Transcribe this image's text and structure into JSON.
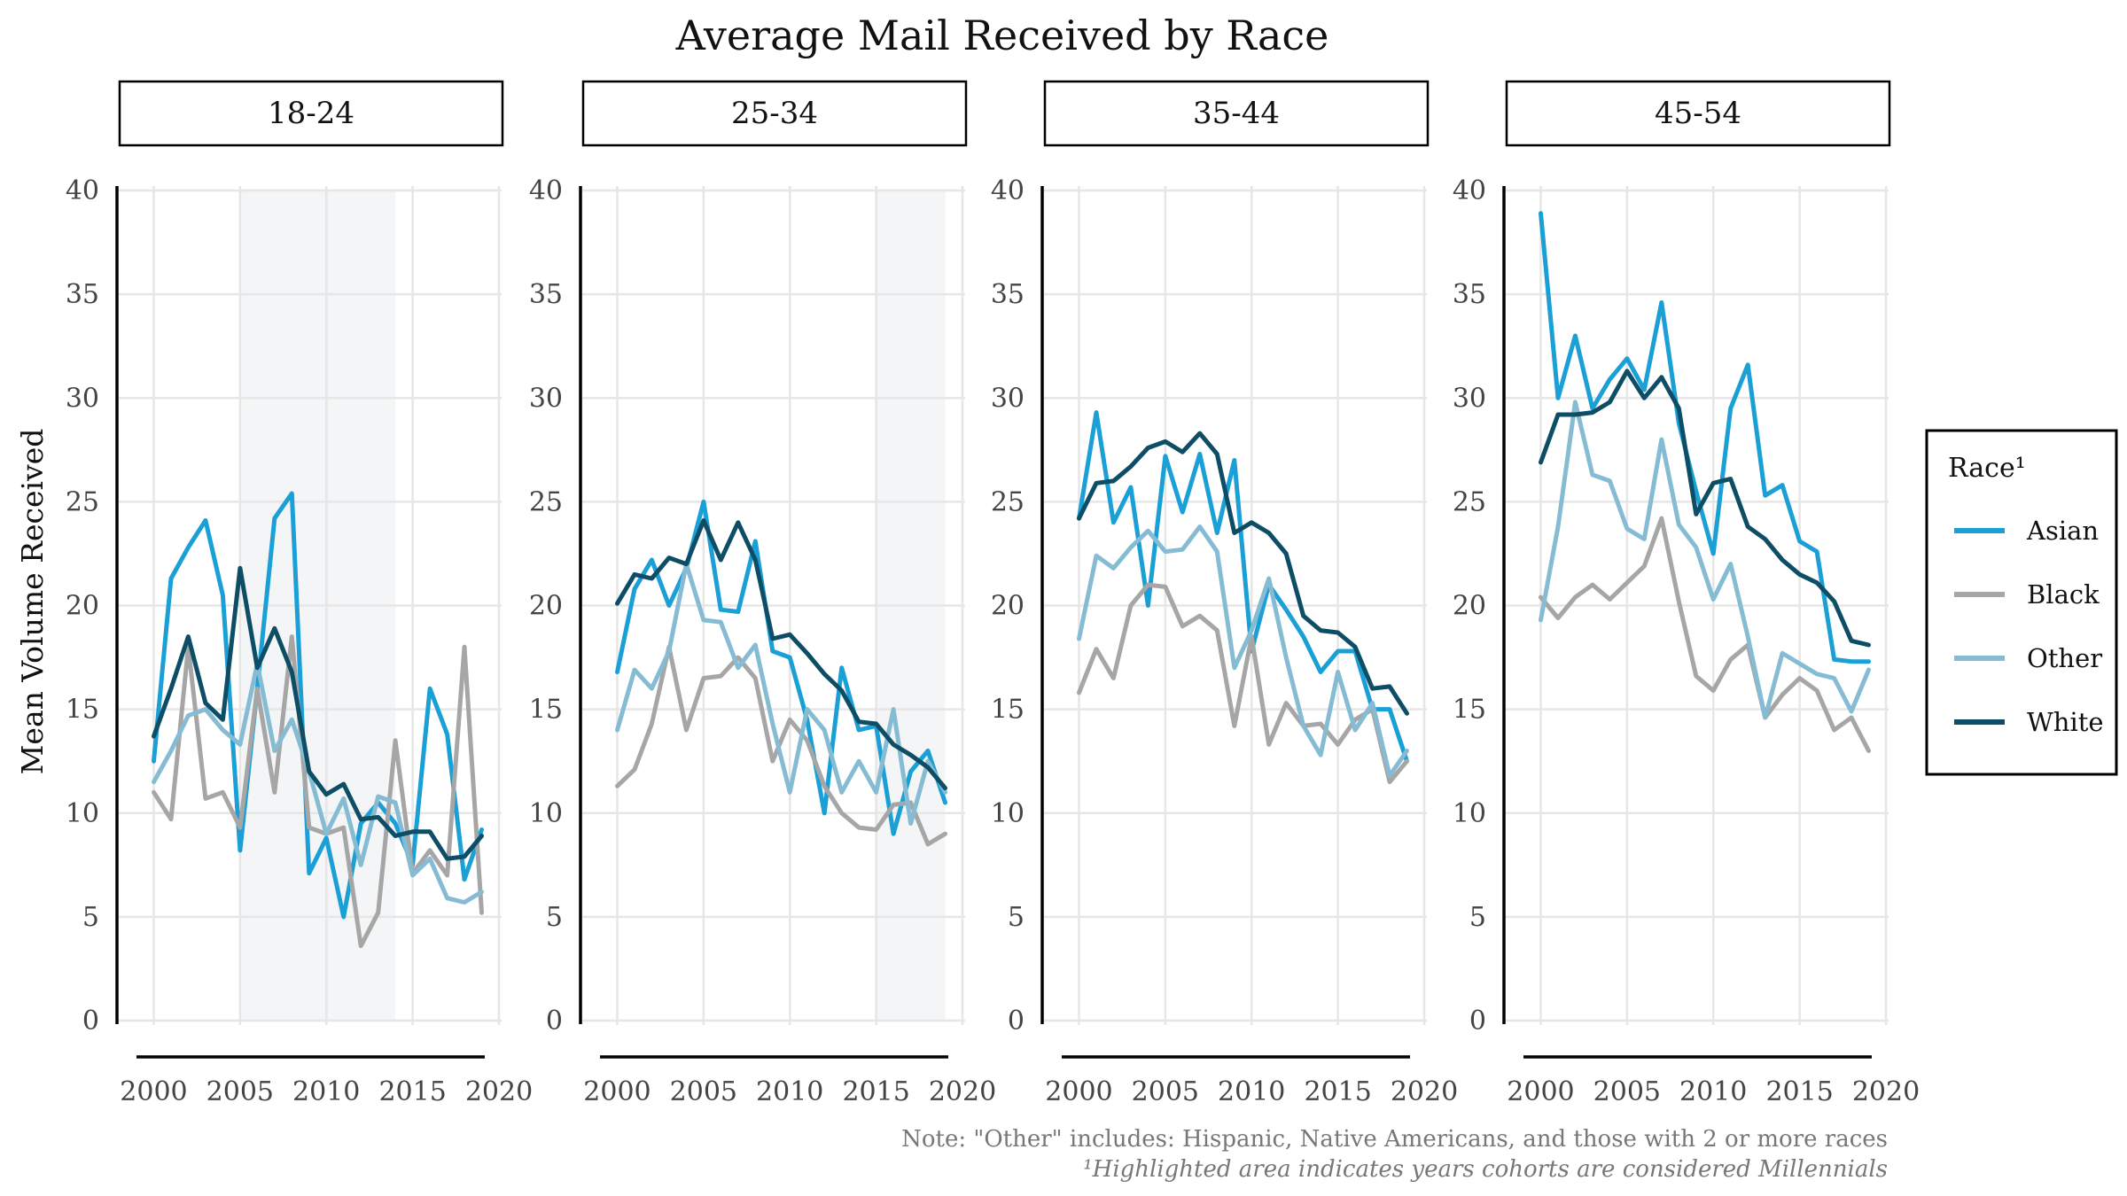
{
  "chart_data": {
    "type": "line",
    "title": "Average Mail Received by Race",
    "ylabel": "Mean Volume Received",
    "xlabel": "",
    "ylim": [
      0,
      40
    ],
    "xlim": [
      1999,
      2020
    ],
    "y_ticks": [
      "0",
      "5",
      "10",
      "15",
      "20",
      "25",
      "30",
      "35",
      "40"
    ],
    "x_ticks": [
      "2000",
      "2005",
      "2010",
      "2015",
      "2020"
    ],
    "x_tick_values": [
      2000,
      2005,
      2010,
      2015,
      2020
    ],
    "y_tick_values": [
      0,
      5,
      10,
      15,
      20,
      25,
      30,
      35,
      40
    ],
    "grid": true,
    "legend": {
      "title": "Race¹",
      "position": "right",
      "entries": [
        "Asian",
        "Black",
        "Other",
        "White"
      ]
    },
    "colors": {
      "Asian": "#1a9fd6",
      "Black": "#a6a6a6",
      "Other": "#86bcd3",
      "White": "#0e4d66",
      "highlight": "#f4f5f6",
      "grid": "#e6e6e6"
    },
    "notes": [
      "Note: \"Other\" includes: Hispanic, Native Americans, and those with 2 or more races",
      "¹Highlighted area indicates years cohorts are considered Millennials"
    ],
    "x": [
      2000,
      2001,
      2002,
      2003,
      2004,
      2005,
      2006,
      2007,
      2008,
      2009,
      2010,
      2011,
      2012,
      2013,
      2014,
      2015,
      2016,
      2017,
      2018,
      2019
    ],
    "panels": [
      {
        "label": "18-24",
        "highlight": [
          2005,
          2014
        ],
        "series": [
          {
            "name": "Asian",
            "values": [
              12.5,
              21.3,
              22.8,
              24.1,
              20.5,
              8.2,
              16.0,
              24.2,
              25.4,
              7.1,
              8.8,
              5.0,
              9.5,
              10.5,
              9.5,
              7.5,
              16.0,
              13.8,
              6.8,
              9.2
            ]
          },
          {
            "name": "Black",
            "values": [
              11.0,
              9.7,
              18.0,
              10.7,
              11.0,
              9.3,
              16.0,
              11.0,
              18.5,
              9.3,
              9.0,
              9.3,
              3.6,
              5.2,
              13.5,
              7.1,
              8.2,
              7.0,
              18.0,
              5.2
            ]
          },
          {
            "name": "Other",
            "values": [
              11.5,
              13.0,
              14.7,
              15.0,
              14.0,
              13.3,
              17.2,
              13.0,
              14.5,
              12.0,
              9.0,
              10.7,
              7.5,
              10.8,
              10.5,
              7.0,
              7.8,
              5.9,
              5.7,
              6.2
            ]
          },
          {
            "name": "White",
            "values": [
              13.7,
              16.0,
              18.5,
              15.3,
              14.5,
              21.8,
              17.0,
              18.9,
              16.8,
              12.0,
              10.9,
              11.4,
              9.7,
              9.8,
              8.9,
              9.1,
              9.1,
              7.8,
              7.9,
              8.9
            ]
          }
        ]
      },
      {
        "label": "25-34",
        "highlight": [
          2015,
          2019
        ],
        "series": [
          {
            "name": "Asian",
            "values": [
              16.8,
              20.8,
              22.2,
              20.0,
              21.8,
              25.0,
              19.8,
              19.7,
              23.1,
              17.8,
              17.5,
              14.5,
              10.0,
              17.0,
              14.0,
              14.2,
              9.0,
              12.0,
              13.0,
              10.5
            ]
          },
          {
            "name": "Black",
            "values": [
              11.3,
              12.1,
              14.3,
              18.0,
              14.0,
              16.5,
              16.6,
              17.5,
              16.5,
              12.5,
              14.5,
              13.5,
              11.3,
              10.0,
              9.3,
              9.2,
              10.4,
              10.5,
              8.5,
              9.0
            ]
          },
          {
            "name": "Other",
            "values": [
              14.0,
              16.9,
              16.0,
              17.8,
              22.0,
              19.3,
              19.2,
              17.0,
              18.1,
              14.3,
              11.0,
              15.0,
              14.0,
              11.0,
              12.5,
              11.0,
              15.0,
              9.5,
              12.5,
              11.0
            ]
          },
          {
            "name": "White",
            "values": [
              20.1,
              21.5,
              21.3,
              22.3,
              22.0,
              24.1,
              22.2,
              24.0,
              22.2,
              18.4,
              18.6,
              17.7,
              16.7,
              15.9,
              14.4,
              14.3,
              13.3,
              12.8,
              12.2,
              11.2
            ]
          }
        ]
      },
      {
        "label": "35-44",
        "highlight": null,
        "series": [
          {
            "name": "Asian",
            "values": [
              24.2,
              29.3,
              24.0,
              25.7,
              20.0,
              27.2,
              24.5,
              27.3,
              23.5,
              27.0,
              17.8,
              21.0,
              19.8,
              18.5,
              16.8,
              17.8,
              17.8,
              15.0,
              15.0,
              12.5
            ]
          },
          {
            "name": "Black",
            "values": [
              15.8,
              17.9,
              16.5,
              20.0,
              21.0,
              20.9,
              19.0,
              19.5,
              18.8,
              14.2,
              18.5,
              13.3,
              15.3,
              14.2,
              14.3,
              13.3,
              14.5,
              15.0,
              11.5,
              12.5
            ]
          },
          {
            "name": "Other",
            "values": [
              18.4,
              22.4,
              21.8,
              22.8,
              23.6,
              22.6,
              22.7,
              23.8,
              22.6,
              17.0,
              18.8,
              21.3,
              17.5,
              14.2,
              12.8,
              16.8,
              14.0,
              15.3,
              11.8,
              13.0
            ]
          },
          {
            "name": "White",
            "values": [
              24.2,
              25.9,
              26.0,
              26.7,
              27.6,
              27.9,
              27.4,
              28.3,
              27.3,
              23.5,
              24.0,
              23.5,
              22.5,
              19.5,
              18.8,
              18.7,
              18.0,
              16.0,
              16.1,
              14.8
            ]
          }
        ]
      },
      {
        "label": "45-54",
        "highlight": null,
        "series": [
          {
            "name": "Asian",
            "values": [
              38.9,
              30.0,
              33.0,
              29.5,
              30.9,
              31.9,
              30.4,
              34.6,
              28.8,
              25.5,
              22.5,
              29.5,
              31.6,
              25.3,
              25.8,
              23.1,
              22.6,
              17.4,
              17.3,
              17.3
            ]
          },
          {
            "name": "Black",
            "values": [
              20.4,
              19.4,
              20.4,
              21.0,
              20.3,
              21.1,
              21.9,
              24.2,
              20.2,
              16.6,
              15.9,
              17.4,
              18.1,
              14.6,
              15.7,
              16.5,
              15.9,
              14.0,
              14.6,
              13.0
            ]
          },
          {
            "name": "Other",
            "values": [
              19.3,
              23.8,
              29.8,
              26.3,
              26.0,
              23.7,
              23.2,
              28.0,
              23.9,
              22.8,
              20.3,
              22.0,
              18.5,
              14.6,
              17.7,
              17.2,
              16.7,
              16.5,
              14.9,
              16.9
            ]
          },
          {
            "name": "White",
            "values": [
              26.9,
              29.2,
              29.2,
              29.3,
              29.8,
              31.3,
              30.0,
              31.0,
              29.5,
              24.4,
              25.9,
              26.1,
              23.8,
              23.2,
              22.2,
              21.5,
              21.1,
              20.2,
              18.3,
              18.1
            ]
          }
        ]
      }
    ]
  }
}
